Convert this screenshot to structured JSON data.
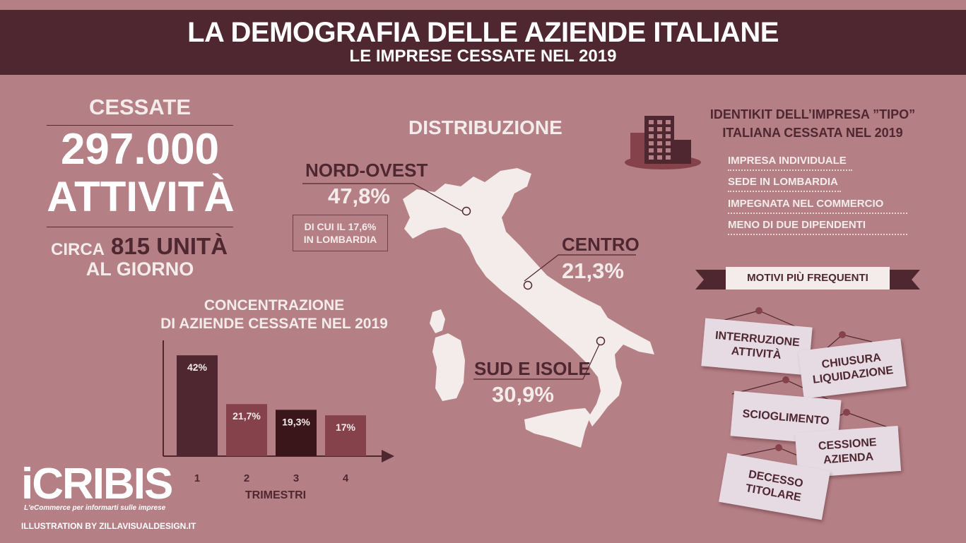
{
  "header": {
    "title": "LA DEMOGRAFIA DELLE AZIENDE ITALIANE",
    "subtitle": "LE IMPRESE CESSATE NEL 2019"
  },
  "summary": {
    "label": "CESSATE",
    "number": "297.000",
    "unit": "ATTIVITÀ",
    "circa": "CIRCA",
    "per_day": "815 UNITÀ",
    "al_giorno": "AL GIORNO"
  },
  "chart_data": {
    "type": "bar",
    "title": "CONCENTRAZIONE DI AZIENDE CESSATE NEL 2019",
    "title_lines": [
      "CONCENTRAZIONE",
      "DI AZIENDE CESSATE NEL 2019"
    ],
    "xlabel": "TRIMESTRI",
    "ylabel": "",
    "categories": [
      "1",
      "2",
      "3",
      "4"
    ],
    "values": [
      42,
      21.7,
      19.3,
      17
    ],
    "value_labels": [
      "42%",
      "21,7%",
      "19,3%",
      "17%"
    ],
    "bar_colors": [
      "#4f2731",
      "#85424b",
      "#3a1519",
      "#85424b"
    ],
    "ylim": [
      0,
      50
    ],
    "grid": false
  },
  "distribution": {
    "title": "DISTRIBUZIONE",
    "regions": [
      {
        "name": "NORD-OVEST",
        "pct": "47,8%"
      },
      {
        "name": "CENTRO",
        "pct": "21,3%"
      },
      {
        "name": "SUD E ISOLE",
        "pct": "30,9%"
      }
    ],
    "lombardia_note": [
      "DI CUI IL 17,6%",
      "IN LOMBARDIA"
    ]
  },
  "identikit": {
    "title_lines": [
      "IDENTIKIT DELL’IMPRESA ”TIPO”",
      "ITALIANA CESSATA NEL 2019"
    ],
    "items": [
      "IMPRESA INDIVIDUALE",
      "SEDE IN LOMBARDIA",
      "IMPEGNATA NEL COMMERCIO",
      "MENO DI DUE DIPENDENTI"
    ]
  },
  "motivi": {
    "title": "MOTIVI PIÙ FREQUENTI",
    "signs": [
      [
        "INTERRUZIONE",
        "ATTIVITÀ"
      ],
      [
        "CHIUSURA",
        "LIQUIDAZIONE"
      ],
      [
        "SCIOGLIMENTO"
      ],
      [
        "CESSIONE",
        "AZIENDA"
      ],
      [
        "DECESSO",
        "TITOLARE"
      ]
    ]
  },
  "footer": {
    "logo": "iCRIBIS",
    "tagline": "L'eCommerce per informarti sulle imprese",
    "credit": "ILLUSTRATION BY ZILLAVISUALDESIGN.IT"
  },
  "colors": {
    "background": "#b47f85",
    "dark": "#4f2731",
    "cream": "#f3ecea"
  }
}
